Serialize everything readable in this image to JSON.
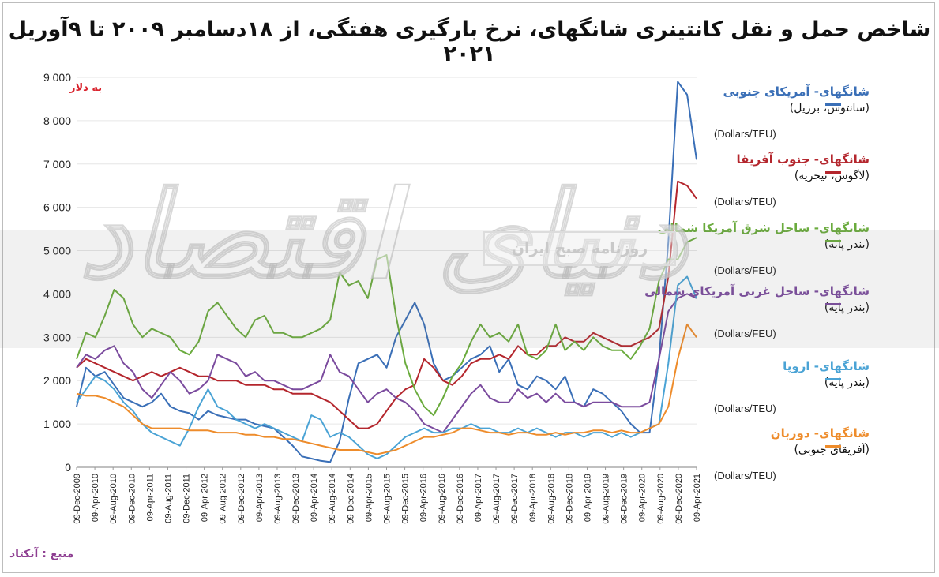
{
  "chart_data": {
    "type": "line",
    "title": "شاخص حمل و نقل کانتینری شانگهای، نرخ بارگیری هفتگی، از ۱۸دسامبر ۲۰۰۹ تا ۹آوریل ۲۰۲۱",
    "unit_label": "به دلار",
    "source": "منبع : آنکتاد",
    "ylim": [
      0,
      9000
    ],
    "yticks": [
      "0",
      "1 000",
      "2 000",
      "3 000",
      "4 000",
      "5 000",
      "6 000",
      "7 000",
      "8 000",
      "9 000"
    ],
    "xticks": [
      "09-Dec-2009",
      "09-Apr-2010",
      "09-Aug-2010",
      "09-Dec-2010",
      "09-Apr-2011",
      "09-Aug-2011",
      "09-Dec-2011",
      "09-Apr-2012",
      "09-Aug-2012",
      "09-Dec-2012",
      "09-Apr-2013",
      "09-Aug-2013",
      "09-Dec-2013",
      "09-Apr-2014",
      "09-Aug-2014",
      "09-Dec-2014",
      "09-Apr-2015",
      "09-Aug-2015",
      "09-Dec-2015",
      "09-Apr-2016",
      "09-Aug-2016",
      "09-Dec-2016",
      "09-Apr-2017",
      "09-Aug-2017",
      "09-Dec-2017",
      "09-Apr-2018",
      "09-Aug-2018",
      "09-Dec-2018",
      "09-Apr-2019",
      "09-Aug-2019",
      "09-Dec-2019",
      "09-Apr-2020",
      "09-Aug-2020",
      "09-Dec-2020",
      "09-Apr-2021"
    ],
    "grid": true,
    "legend": "right",
    "series": [
      {
        "name": "شانگهای- آمریکای جنوبی",
        "port": "(سانتوس، برزیل)",
        "unit": "(Dollars/TEU)",
        "color": "#3a6fb7",
        "values": [
          1400,
          2300,
          2100,
          2200,
          1900,
          1600,
          1500,
          1400,
          1500,
          1700,
          1400,
          1300,
          1250,
          1100,
          1300,
          1200,
          1150,
          1100,
          1100,
          1000,
          950,
          900,
          700,
          500,
          250,
          200,
          150,
          120,
          600,
          1600,
          2400,
          2500,
          2600,
          2300,
          3000,
          3400,
          3800,
          3300,
          2400,
          2000,
          2100,
          2300,
          2500,
          2600,
          2800,
          2200,
          2500,
          1900,
          1800,
          2100,
          2000,
          1800,
          2100,
          1500,
          1400,
          1800,
          1700,
          1500,
          1300,
          1000,
          800,
          800,
          2500,
          5200,
          8900,
          8600,
          7100
        ]
      },
      {
        "name": "شانگهای- جنوب آفریقا",
        "port": "(لاگوس، نیجریه)",
        "unit": "(Dollars/TEU)",
        "color": "#b4262d",
        "values": [
          2300,
          2500,
          2400,
          2300,
          2200,
          2100,
          2000,
          2100,
          2200,
          2100,
          2200,
          2300,
          2200,
          2100,
          2100,
          2000,
          2000,
          2000,
          1900,
          1900,
          1900,
          1800,
          1800,
          1700,
          1700,
          1700,
          1600,
          1500,
          1300,
          1100,
          900,
          900,
          1000,
          1300,
          1600,
          1800,
          1900,
          2500,
          2300,
          2000,
          1900,
          2100,
          2400,
          2500,
          2500,
          2600,
          2500,
          2800,
          2600,
          2600,
          2800,
          2800,
          3000,
          2900,
          2900,
          3100,
          3000,
          2900,
          2800,
          2800,
          2900,
          3000,
          3200,
          4400,
          6600,
          6500,
          6200
        ]
      },
      {
        "name": "شانگهای- ساحل شرق آمریکا شمالی",
        "port": "(بندر پایه)",
        "unit": "(Dollars/FEU)",
        "color": "#6aab3d",
        "values": [
          2500,
          3100,
          3000,
          3500,
          4100,
          3900,
          3300,
          3000,
          3200,
          3100,
          3000,
          2700,
          2600,
          2900,
          3600,
          3800,
          3500,
          3200,
          3000,
          3400,
          3500,
          3100,
          3100,
          3000,
          3000,
          3100,
          3200,
          3400,
          4500,
          4200,
          4300,
          3900,
          4800,
          4900,
          3500,
          2400,
          1800,
          1400,
          1200,
          1600,
          2100,
          2400,
          2900,
          3300,
          3000,
          3100,
          2900,
          3300,
          2600,
          2500,
          2700,
          3300,
          2700,
          2900,
          2700,
          3000,
          2800,
          2700,
          2700,
          2500,
          2800,
          3200,
          4300,
          4800,
          4800,
          5200,
          5300
        ]
      },
      {
        "name": "شانگهای- ساحل غربی آمریکای شمالی",
        "port": "(بندر پایه)",
        "unit": "(Dollars/FEU)",
        "color": "#7b4b9e",
        "values": [
          2300,
          2600,
          2500,
          2700,
          2800,
          2400,
          2200,
          1800,
          1600,
          1900,
          2200,
          2000,
          1700,
          1800,
          2000,
          2600,
          2500,
          2400,
          2100,
          2200,
          2000,
          2000,
          1900,
          1800,
          1800,
          1900,
          2000,
          2600,
          2200,
          2100,
          1800,
          1500,
          1700,
          1800,
          1600,
          1500,
          1300,
          1000,
          900,
          800,
          1100,
          1400,
          1700,
          1900,
          1600,
          1500,
          1500,
          1800,
          1600,
          1700,
          1500,
          1700,
          1500,
          1500,
          1400,
          1500,
          1500,
          1500,
          1400,
          1400,
          1400,
          1500,
          2500,
          3600,
          3900,
          4000,
          3900
        ]
      },
      {
        "name": "شانگهای- اروپا",
        "port": "(بندر پایه)",
        "unit": "(Dollars/TEU)",
        "color": "#4aa3d5",
        "values": [
          1500,
          1800,
          2100,
          2000,
          1800,
          1500,
          1300,
          1000,
          800,
          700,
          600,
          500,
          900,
          1400,
          1800,
          1400,
          1300,
          1100,
          1000,
          900,
          1000,
          900,
          800,
          700,
          600,
          1200,
          1100,
          700,
          800,
          700,
          500,
          300,
          200,
          300,
          500,
          700,
          800,
          900,
          800,
          800,
          900,
          900,
          1000,
          900,
          900,
          800,
          800,
          900,
          800,
          900,
          800,
          700,
          800,
          800,
          700,
          800,
          800,
          700,
          800,
          700,
          800,
          900,
          1000,
          2400,
          4200,
          4400,
          3900
        ]
      },
      {
        "name": "شانگهای- دوربان",
        "port": "(آفریقای جنوبی)",
        "unit": "(Dollars/TEU)",
        "color": "#ee8c2b",
        "values": [
          1700,
          1650,
          1650,
          1600,
          1500,
          1400,
          1200,
          1000,
          900,
          900,
          900,
          900,
          850,
          850,
          850,
          800,
          800,
          800,
          750,
          750,
          700,
          700,
          650,
          650,
          600,
          550,
          500,
          450,
          400,
          400,
          400,
          350,
          300,
          350,
          400,
          500,
          600,
          700,
          700,
          750,
          800,
          900,
          900,
          850,
          800,
          800,
          750,
          800,
          800,
          750,
          750,
          800,
          750,
          800,
          800,
          850,
          850,
          800,
          850,
          800,
          800,
          900,
          1000,
          1400,
          2500,
          3300,
          3000
        ]
      }
    ]
  }
}
